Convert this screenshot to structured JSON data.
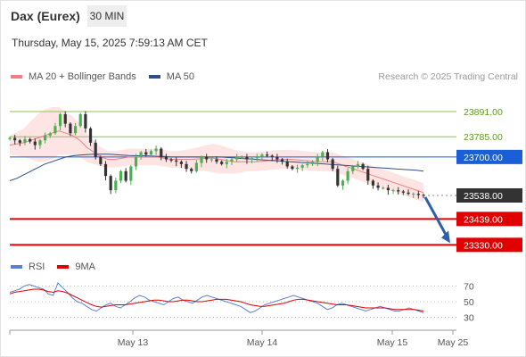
{
  "instrument": "Dax (Eurex)",
  "timeframe": "30 MIN",
  "datetime": "Thursday, May 15, 2025 7:59:13 AM CET",
  "credit": "Research © 2025 Trading Central",
  "colors": {
    "candle_up": "#4caf50",
    "candle_down": "#333333",
    "ma20": "#f08080",
    "bollinger_fill": "#ffe4e4",
    "ma50": "#2e4f8a",
    "resistance": "#8bc34a",
    "pivot": "#1a5fd6",
    "support": "#e00000",
    "current": "#333333",
    "rsi": "#5b7fd6",
    "rsi_ma": "#e00000",
    "arrow": "#2e5fa8"
  },
  "chart_data": [
    {
      "type": "candlestick",
      "title": "Dax (Eurex)",
      "legend": [
        {
          "name": "MA 20 + Bollinger Bands",
          "color": "#f08080"
        },
        {
          "name": "MA 50",
          "color": "#2e4f8a"
        }
      ],
      "ylim": [
        23290,
        23985
      ],
      "x_ticks": [
        "May 13",
        "May 14",
        "May 15",
        "May 25"
      ],
      "levels": [
        {
          "value": 23891.0,
          "label": "23891.00",
          "kind": "resistance"
        },
        {
          "value": 23785.0,
          "label": "23785.00",
          "kind": "resistance"
        },
        {
          "value": 23700.0,
          "label": "23700.00",
          "kind": "pivot"
        },
        {
          "value": 23538.0,
          "label": "23538.00",
          "kind": "current"
        },
        {
          "value": 23439.0,
          "label": "23439.00",
          "kind": "support"
        },
        {
          "value": 23330.0,
          "label": "23330.00",
          "kind": "support"
        }
      ],
      "close_path": [
        23780,
        23770,
        23760,
        23775,
        23765,
        23750,
        23770,
        23790,
        23800,
        23830,
        23880,
        23840,
        23800,
        23830,
        23880,
        23820,
        23760,
        23700,
        23670,
        23620,
        23560,
        23600,
        23640,
        23600,
        23660,
        23700,
        23720,
        23710,
        23725,
        23735,
        23700,
        23690,
        23685,
        23680,
        23670,
        23650,
        23640,
        23675,
        23700,
        23690,
        23690,
        23680,
        23670,
        23680,
        23690,
        23700,
        23700,
        23690,
        23695,
        23700,
        23710,
        23705,
        23700,
        23690,
        23680,
        23660,
        23650,
        23655,
        23665,
        23670,
        23680,
        23700,
        23720,
        23690,
        23650,
        23580,
        23600,
        23640,
        23660,
        23670,
        23650,
        23600,
        23580,
        23570,
        23570,
        23560,
        23560,
        23555,
        23550,
        23545,
        23545,
        23540,
        23538
      ],
      "ma20_path": [
        23750,
        23755,
        23760,
        23770,
        23780,
        23790,
        23800,
        23810,
        23800,
        23790,
        23770,
        23740,
        23720,
        23700,
        23690,
        23690,
        23695,
        23700,
        23700,
        23700,
        23700,
        23700,
        23695,
        23690,
        23690,
        23690,
        23690,
        23692,
        23695,
        23695,
        23690,
        23685,
        23680,
        23680,
        23680,
        23680,
        23682,
        23685,
        23688,
        23690,
        23690,
        23688,
        23685,
        23682,
        23680,
        23680,
        23680,
        23670,
        23660,
        23650,
        23640,
        23630,
        23620,
        23610,
        23600,
        23590,
        23580,
        23570,
        23560,
        23550
      ],
      "bb_width_path": [
        40,
        50,
        60,
        80,
        100,
        110,
        110,
        100,
        90,
        80,
        70,
        60,
        50,
        40,
        35,
        35,
        35,
        35,
        35,
        35,
        35,
        35,
        35,
        35,
        35,
        40,
        45,
        50,
        55,
        60,
        60,
        55,
        50,
        45,
        40,
        40,
        40,
        40,
        40,
        40,
        40,
        40,
        40,
        40,
        40,
        40,
        40,
        40,
        40,
        40,
        40,
        40,
        40,
        40,
        40,
        40,
        40,
        40,
        40,
        40
      ],
      "ma50_path": [
        23600,
        23610,
        23625,
        23640,
        23655,
        23670,
        23680,
        23690,
        23700,
        23705,
        23708,
        23710,
        23712,
        23712,
        23712,
        23710,
        23708,
        23706,
        23705,
        23705,
        23704,
        23703,
        23702,
        23700,
        23700,
        23700,
        23700,
        23700,
        23700,
        23700,
        23700,
        23698,
        23696,
        23694,
        23692,
        23690,
        23688,
        23686,
        23684,
        23682,
        23680,
        23678,
        23676,
        23674,
        23672,
        23670,
        23668,
        23666,
        23664,
        23662,
        23660,
        23658,
        23656,
        23654,
        23652,
        23650,
        23648,
        23646,
        23644,
        23640
      ],
      "projection": {
        "from": 23538,
        "to": 23330
      }
    },
    {
      "type": "line",
      "title": "",
      "legend": [
        {
          "name": "RSI",
          "color": "#5b7fd6"
        },
        {
          "name": "9MA",
          "color": "#e00000"
        }
      ],
      "ylim": [
        18,
        82
      ],
      "y_ticks": [
        70,
        50,
        30
      ],
      "rsi_path": [
        62,
        64,
        66,
        70,
        72,
        70,
        68,
        66,
        60,
        58,
        74,
        68,
        62,
        55,
        50,
        48,
        44,
        40,
        38,
        42,
        46,
        48,
        44,
        42,
        46,
        50,
        55,
        58,
        56,
        52,
        50,
        48,
        46,
        50,
        54,
        56,
        52,
        50,
        48,
        52,
        56,
        58,
        56,
        54,
        52,
        50,
        48,
        46,
        44,
        40,
        36,
        38,
        42,
        46,
        48,
        50,
        52,
        54,
        56,
        58,
        56,
        54,
        52,
        50,
        48,
        44,
        40,
        42,
        46,
        48,
        46,
        44,
        42,
        40,
        38,
        40,
        42,
        44,
        42,
        40,
        38,
        38,
        40,
        42,
        40,
        38,
        36
      ],
      "rsi_ma_path": [
        60,
        62,
        63,
        64,
        65,
        66,
        66,
        65,
        63,
        62,
        64,
        63,
        61,
        58,
        55,
        52,
        49,
        46,
        44,
        43,
        44,
        45,
        46,
        46,
        46,
        47,
        48,
        49,
        50,
        51,
        52,
        52,
        51,
        50,
        50,
        51,
        52,
        52,
        51,
        50,
        50,
        51,
        52,
        53,
        53,
        53,
        52,
        51,
        50,
        48,
        46,
        45,
        44,
        44,
        45,
        46,
        47,
        48,
        50,
        52,
        53,
        53,
        52,
        51,
        50,
        49,
        48,
        47,
        46,
        46,
        46,
        45,
        44,
        43,
        42,
        42,
        42,
        42,
        42,
        41,
        40,
        40,
        40,
        40,
        40,
        39,
        38
      ]
    }
  ],
  "labels": {
    "ma_legend_1": "MA 20 + Bollinger Bands",
    "ma_legend_2": "MA 50",
    "rsi_legend_1": "RSI",
    "rsi_legend_2": "9MA"
  }
}
